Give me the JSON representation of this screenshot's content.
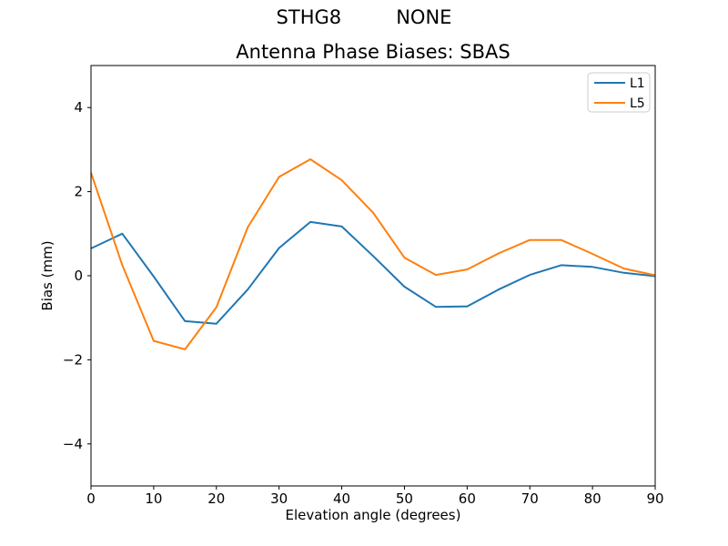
{
  "chart_data": {
    "type": "line",
    "suptitle": "STHG8         NONE",
    "title": "Antenna Phase Biases: SBAS",
    "xlabel": "Elevation angle (degrees)",
    "ylabel": "Bias (mm)",
    "xlim": [
      0,
      90
    ],
    "ylim": [
      -5,
      5
    ],
    "xticks": [
      0,
      10,
      20,
      30,
      40,
      50,
      60,
      70,
      80,
      90
    ],
    "xticklabels": [
      "0",
      "10",
      "20",
      "30",
      "40",
      "50",
      "60",
      "70",
      "80",
      "90"
    ],
    "yticks": [
      -4,
      -2,
      0,
      2,
      4
    ],
    "yticklabels": [
      "−4",
      "−2",
      "0",
      "2",
      "4"
    ],
    "grid": false,
    "legend_position": "upper right",
    "x": [
      0,
      5,
      10,
      15,
      20,
      25,
      30,
      35,
      40,
      45,
      50,
      55,
      60,
      65,
      70,
      75,
      80,
      85,
      90
    ],
    "series": [
      {
        "name": "L1",
        "color": "#1f77b4",
        "values": [
          0.65,
          1.0,
          -0.02,
          -1.08,
          -1.14,
          -0.33,
          0.66,
          1.28,
          1.17,
          0.47,
          -0.26,
          -0.74,
          -0.73,
          -0.33,
          0.02,
          0.25,
          0.21,
          0.07,
          -0.01
        ]
      },
      {
        "name": "L5",
        "color": "#ff7f0e",
        "values": [
          2.45,
          0.25,
          -1.55,
          -1.75,
          -0.75,
          1.15,
          2.35,
          2.77,
          2.27,
          1.5,
          0.43,
          0.02,
          0.15,
          0.53,
          0.85,
          0.85,
          0.52,
          0.17,
          0.01
        ]
      }
    ]
  },
  "colors": {
    "background": "#ffffff",
    "axis": "#000000",
    "legend_border": "#cccccc"
  }
}
